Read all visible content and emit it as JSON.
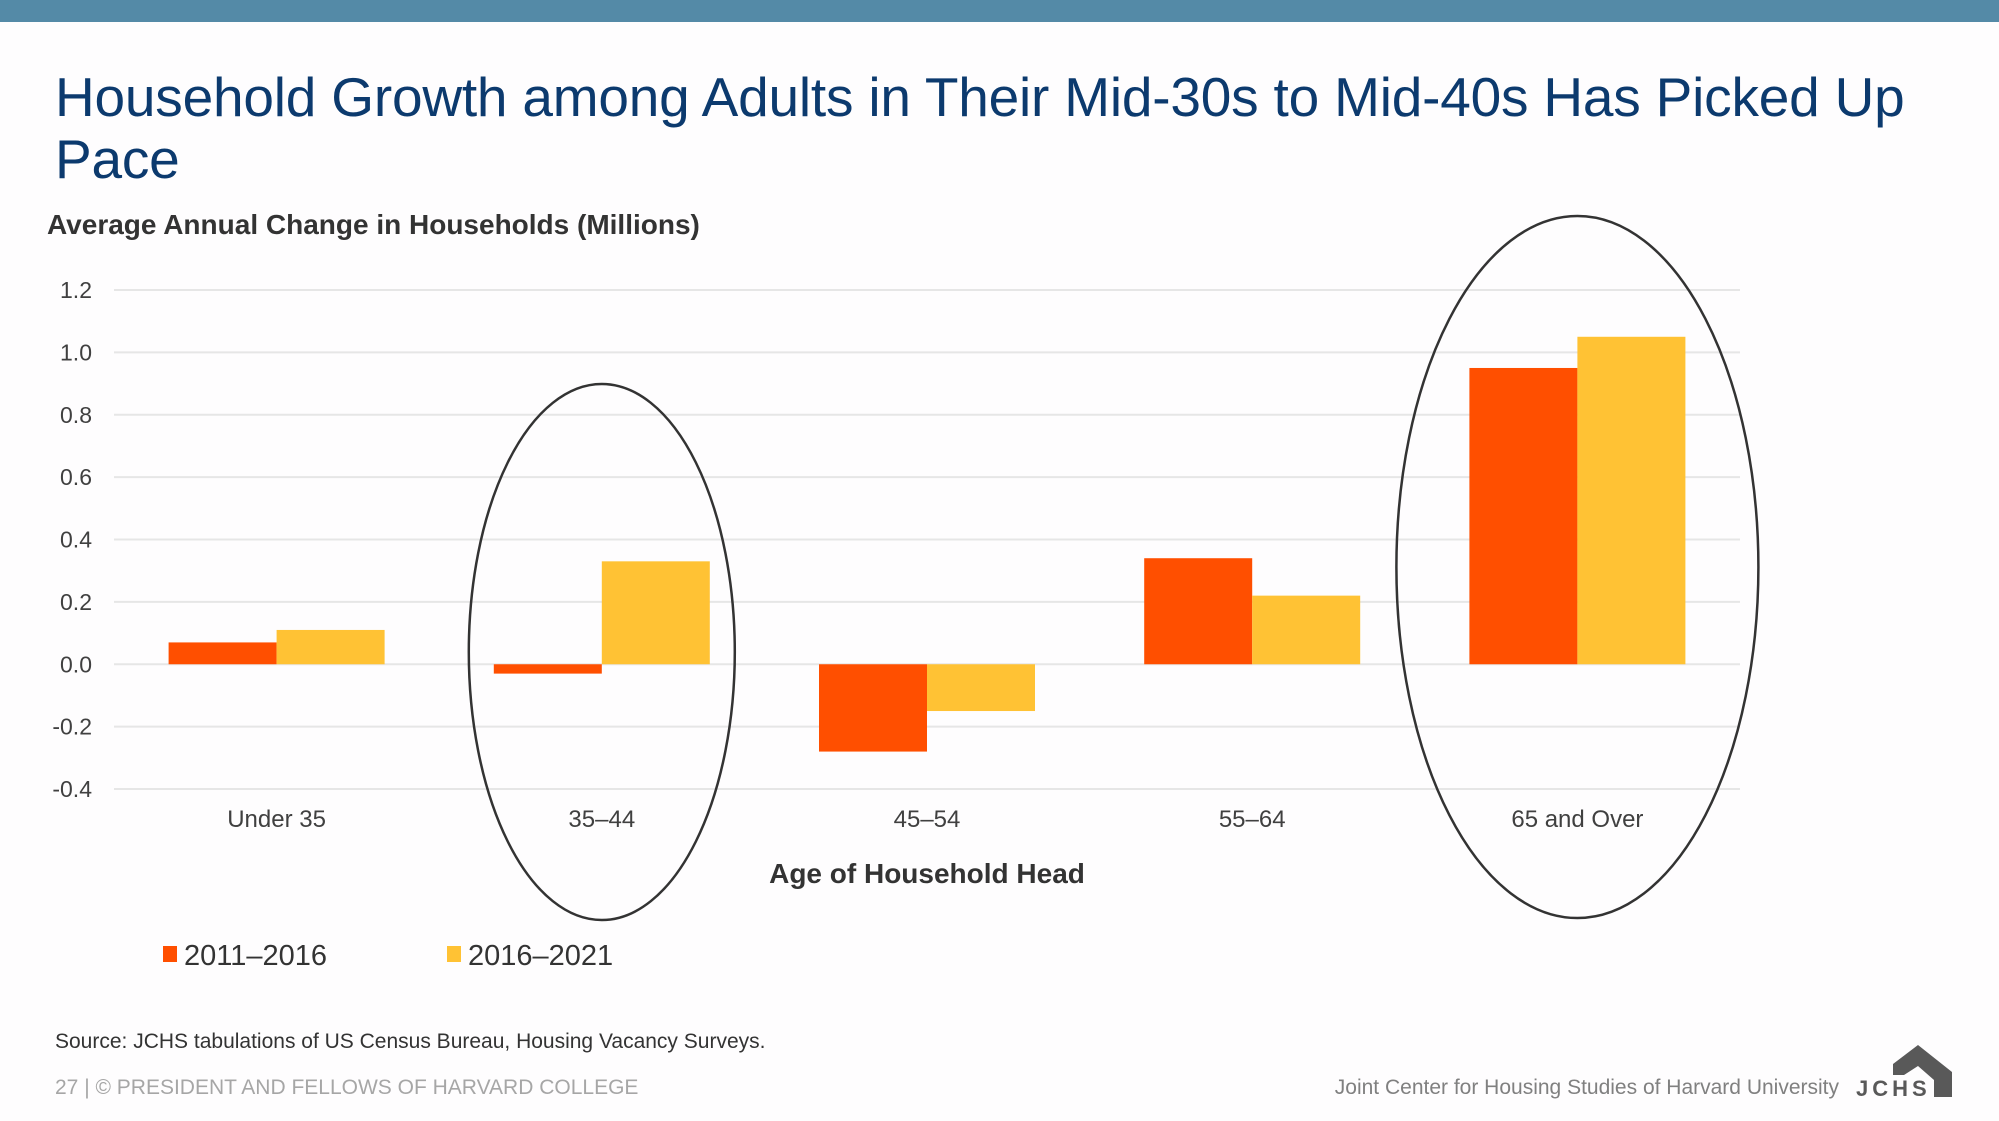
{
  "slide": {
    "title": "Household Growth among Adults in Their Mid-30s to Mid-40s Has Picked Up Pace",
    "source": "Source: JCHS tabulations of US Census Bureau, Housing Vacancy Surveys.",
    "footer_left": "27 | © PRESIDENT AND FELLOWS OF HARVARD COLLEGE",
    "footer_right": "Joint Center for Housing Studies of Harvard University",
    "logo_text": "JCHS",
    "colors": {
      "top_bar": "#548aa7",
      "title": "#0c3a6e",
      "series_2011_2016": "#ff4f00",
      "series_2016_2021": "#ffc234",
      "highlight_ellipse": "#333333",
      "gridline": "#e6e6e6"
    }
  },
  "chart_data": {
    "type": "bar",
    "title": "Average Annual Change in Households (Millions)",
    "xlabel": "Age of Household Head",
    "ylabel": "Average Annual Change in Households (Millions)",
    "categories": [
      "Under 35",
      "35–44",
      "45–54",
      "55–64",
      "65 and Over"
    ],
    "series": [
      {
        "name": "2011–2016",
        "color": "#ff4f00",
        "values": [
          0.07,
          -0.03,
          -0.28,
          0.34,
          0.95
        ]
      },
      {
        "name": "2016–2021",
        "color": "#ffc234",
        "values": [
          0.11,
          0.33,
          -0.15,
          0.22,
          1.05
        ]
      }
    ],
    "ylim": [
      -0.4,
      1.2
    ],
    "yticks": [
      "1.2",
      "1.0",
      "0.8",
      "0.6",
      "0.4",
      "0.2",
      "0.0",
      "-0.2",
      "-0.4"
    ],
    "ytick_values": [
      1.2,
      1.0,
      0.8,
      0.6,
      0.4,
      0.2,
      0.0,
      -0.2,
      -0.4
    ],
    "grid": true,
    "legend": {
      "position": "bottom-left",
      "entries": [
        "2011–2016",
        "2016–2021"
      ]
    },
    "annotations": [
      {
        "type": "ellipse",
        "highlights_category": "35–44"
      },
      {
        "type": "ellipse",
        "highlights_category": "65 and Over"
      }
    ]
  }
}
